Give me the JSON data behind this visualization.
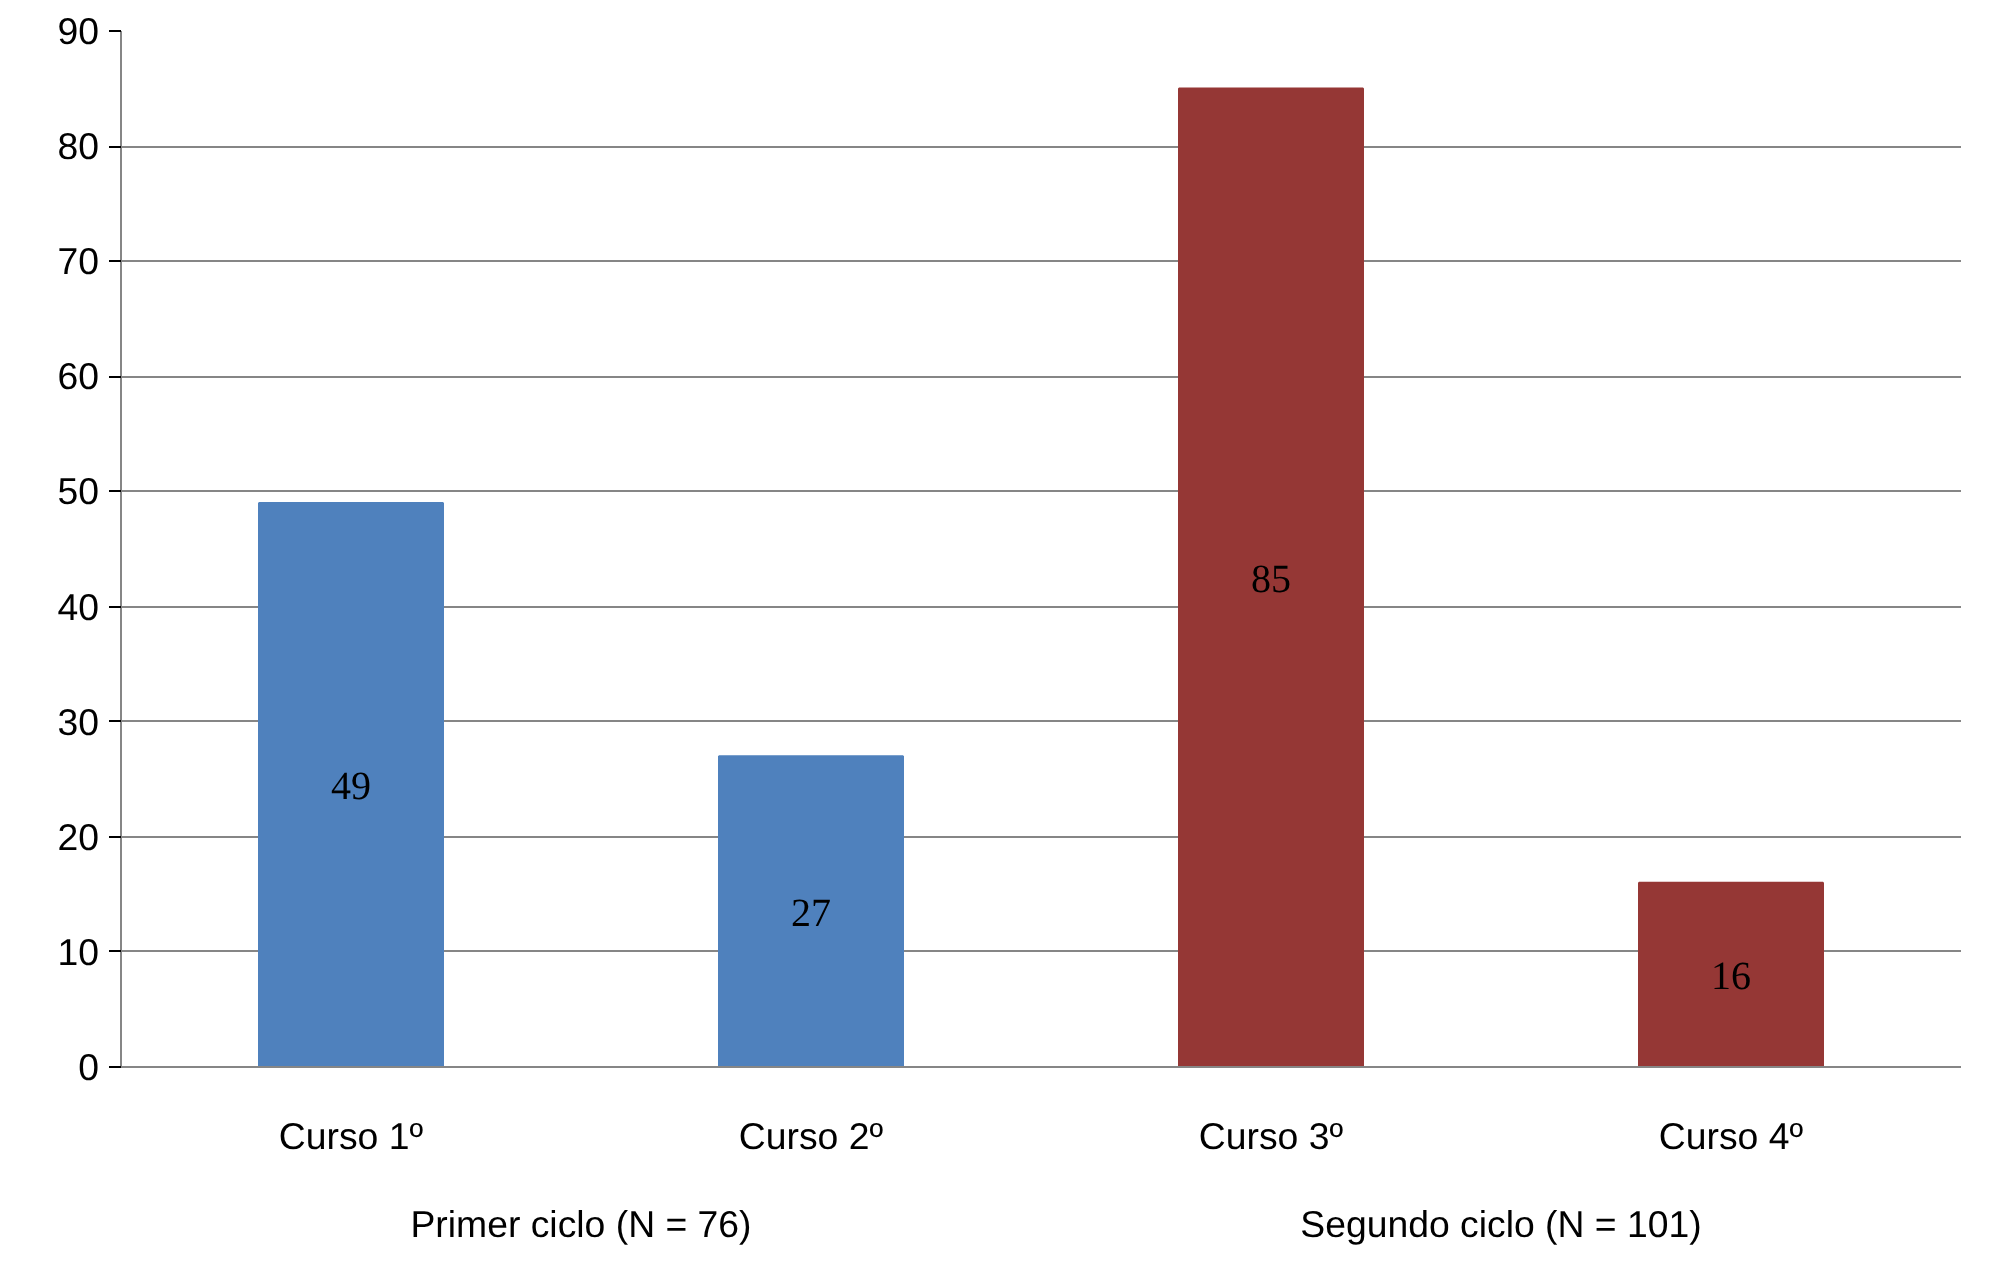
{
  "chart_data": {
    "type": "bar",
    "categories": [
      "Curso 1º",
      "Curso 2º",
      "Curso 3º",
      "Curso 4º"
    ],
    "values": [
      49,
      27,
      85,
      16
    ],
    "colors": [
      "#4f81bd",
      "#4f81bd",
      "#953735",
      "#953735"
    ],
    "annotations": [
      "Primer ciclo (N = 76)",
      "Segundo ciclo (N = 101)"
    ],
    "ylim": [
      0,
      90
    ],
    "yticks": [
      0,
      10,
      20,
      30,
      40,
      50,
      60,
      70,
      80,
      90
    ],
    "grid": "y",
    "data_labels": true
  }
}
